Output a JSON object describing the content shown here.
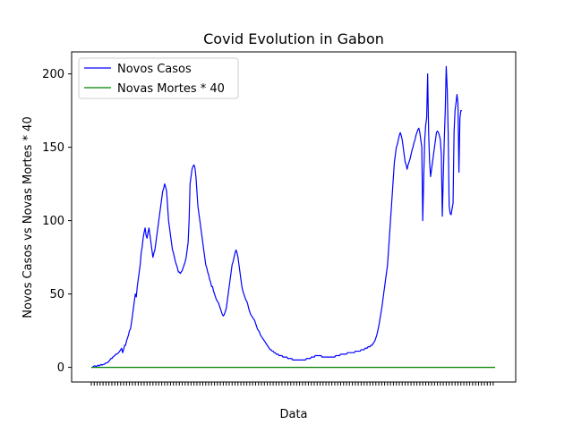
{
  "chart_data": {
    "type": "line",
    "title": "Covid Evolution in Gabon",
    "xlabel": "Data",
    "ylabel": "Novos Casos vs Novas Mortes * 40",
    "ylim": [
      -10,
      215
    ],
    "yticks": [
      0,
      50,
      100,
      150,
      200
    ],
    "x_tick_labels_note": "dense overlapping date labels (illegible)",
    "grid": false,
    "legend": {
      "placement": "top-left",
      "entries": [
        "Novos Casos",
        "Novas Mortes * 40"
      ]
    },
    "series": [
      {
        "name": "Novos Casos",
        "color": "#0000ff",
        "values": [
          0,
          0,
          0.5,
          1,
          1,
          0.5,
          1,
          1.5,
          1,
          1.5,
          2,
          1.5,
          2,
          2,
          2.5,
          3,
          3,
          3.5,
          4,
          5,
          6,
          6,
          7,
          7.5,
          8,
          9,
          9,
          9.5,
          10,
          11,
          12,
          13,
          10,
          12,
          15,
          15,
          18,
          20,
          22,
          25,
          26,
          30,
          35,
          40,
          45,
          50,
          48,
          55,
          60,
          65,
          70,
          78,
          82,
          88,
          92,
          95,
          90,
          88,
          92,
          95,
          90,
          85,
          80,
          75,
          78,
          80,
          85,
          90,
          95,
          100,
          105,
          110,
          115,
          120,
          122,
          125,
          123,
          120,
          110,
          100,
          95,
          90,
          85,
          80,
          78,
          75,
          72,
          70,
          68,
          65,
          65,
          64,
          65,
          66,
          68,
          70,
          72,
          75,
          80,
          85,
          100,
          125,
          130,
          135,
          137,
          138,
          136,
          130,
          120,
          110,
          105,
          100,
          95,
          90,
          85,
          80,
          75,
          70,
          68,
          65,
          63,
          60,
          58,
          55,
          55,
          52,
          50,
          48,
          46,
          45,
          44,
          42,
          40,
          38,
          36,
          35,
          36,
          38,
          40,
          45,
          50,
          55,
          60,
          65,
          70,
          72,
          75,
          78,
          80,
          78,
          75,
          70,
          65,
          60,
          55,
          52,
          50,
          48,
          46,
          45,
          43,
          40,
          38,
          36,
          35,
          34,
          33,
          32,
          30,
          28,
          26,
          25,
          24,
          22,
          21,
          20,
          19,
          18,
          17,
          16,
          15,
          14,
          13,
          12,
          12,
          11,
          11,
          10,
          10,
          9,
          9,
          9,
          8,
          8,
          8,
          8,
          7,
          7,
          7,
          7,
          7,
          6,
          6,
          6,
          6,
          6,
          5,
          5,
          5,
          5,
          5,
          5,
          5,
          5,
          5,
          5,
          5,
          5,
          5,
          5,
          6,
          6,
          6,
          6,
          6,
          7,
          7,
          7,
          7,
          8,
          8,
          8,
          8,
          8,
          8,
          8,
          7,
          7,
          7,
          7,
          7,
          7,
          7,
          7,
          7,
          7,
          7,
          7,
          7,
          7,
          8,
          8,
          8,
          8,
          8,
          9,
          9,
          9,
          9,
          9,
          9,
          9,
          10,
          10,
          10,
          10,
          10,
          10,
          10,
          10,
          11,
          11,
          11,
          11,
          11,
          11,
          12,
          12,
          12,
          12,
          13,
          13,
          13,
          14,
          14,
          14,
          15,
          15,
          16,
          17,
          18,
          20,
          22,
          25,
          28,
          32,
          36,
          40,
          45,
          50,
          55,
          60,
          65,
          70,
          80,
          90,
          100,
          110,
          120,
          130,
          140,
          145,
          150,
          152,
          155,
          158,
          160,
          158,
          155,
          150,
          145,
          140,
          138,
          135,
          138,
          140,
          142,
          145,
          148,
          150,
          153,
          155,
          158,
          160,
          162,
          163,
          160,
          155,
          150,
          100,
          130,
          155,
          165,
          170,
          200,
          160,
          140,
          130,
          135,
          140,
          145,
          150,
          155,
          160,
          161,
          160,
          158,
          155,
          145,
          103,
          130,
          155,
          175,
          205,
          190,
          160,
          110,
          105,
          104,
          108,
          112,
          160,
          175,
          180,
          186,
          180,
          133,
          170,
          175,
          175
        ]
      },
      {
        "name": "Novas Mortes * 40",
        "color": "#008000",
        "values": [
          0,
          0,
          0,
          0,
          0,
          0,
          0,
          0,
          0,
          0,
          0,
          0,
          0,
          0,
          0,
          0,
          0,
          0,
          0,
          0,
          0,
          0,
          0,
          0,
          0,
          0,
          0,
          0,
          0,
          0,
          0,
          0,
          0,
          0,
          0,
          0,
          0,
          0,
          0,
          0,
          0,
          0,
          0,
          0,
          0,
          0,
          0,
          0,
          0,
          0,
          0,
          0,
          0,
          0,
          0,
          0,
          0,
          0,
          0,
          0,
          0,
          0,
          0,
          0,
          0,
          0,
          0,
          0,
          0,
          0,
          0,
          0,
          0,
          0,
          0,
          0,
          0,
          0,
          0,
          0,
          0,
          0,
          0,
          0,
          0,
          0,
          0,
          0,
          0,
          0,
          0,
          0,
          0,
          0,
          0,
          0,
          0,
          0,
          0,
          0,
          0,
          0,
          0,
          0,
          0,
          0,
          0,
          0,
          0,
          0,
          0,
          0,
          0,
          0,
          0,
          0,
          0,
          0,
          0,
          0,
          0,
          0,
          0,
          0,
          0,
          0,
          0,
          0,
          0,
          0,
          0,
          0,
          0,
          0,
          0,
          0,
          0,
          0,
          0,
          0,
          0,
          0,
          0,
          0,
          0,
          0,
          0,
          0,
          0,
          0,
          0,
          0,
          0,
          0,
          0,
          0,
          0,
          0,
          0,
          0,
          0,
          0,
          0,
          0,
          0,
          0,
          0,
          0,
          0,
          0,
          0,
          0,
          0,
          0,
          0,
          0,
          0,
          0,
          0,
          0,
          0,
          0,
          0,
          0,
          0,
          0,
          0,
          0,
          0,
          0,
          0,
          0,
          0,
          0,
          0,
          0,
          0,
          0,
          0,
          0,
          0,
          0,
          0,
          0,
          0,
          0,
          0,
          0,
          0,
          0,
          0,
          0,
          0,
          0,
          0,
          0,
          0,
          0,
          0,
          0,
          0,
          0,
          0,
          0,
          0,
          0,
          0,
          0,
          0,
          0,
          0,
          0,
          0,
          0,
          0,
          0,
          0,
          0,
          0,
          0,
          0,
          0,
          0,
          0,
          0,
          0,
          0,
          0,
          0,
          0,
          0,
          0,
          0,
          0,
          0,
          0,
          0,
          0,
          0,
          0,
          0,
          0,
          0,
          0,
          0,
          0,
          0,
          0,
          0,
          0,
          0,
          0,
          0,
          0,
          0,
          0,
          0,
          0,
          0,
          0,
          0,
          0,
          0,
          0,
          0,
          0,
          0,
          0,
          0,
          0,
          0,
          0,
          0,
          0,
          0,
          0,
          0,
          0,
          0,
          0,
          0,
          0,
          0,
          0,
          0,
          0,
          0,
          0,
          0,
          0,
          0,
          0,
          0,
          0,
          0,
          0,
          0,
          0,
          0,
          0,
          0,
          0,
          0,
          0,
          0,
          0,
          0,
          0,
          0,
          0,
          0,
          0,
          0,
          0,
          0,
          0,
          0,
          0,
          0,
          0,
          0,
          0,
          0,
          0,
          0,
          0,
          0,
          0,
          0,
          0,
          0,
          0,
          0,
          0,
          0,
          0,
          0,
          0,
          0,
          0,
          0,
          0,
          0,
          0,
          0,
          0,
          0,
          0,
          0,
          0,
          0,
          0,
          0,
          0,
          0,
          0,
          0,
          0,
          0,
          0,
          0,
          0,
          0,
          0,
          0,
          0,
          0,
          0,
          0,
          0,
          0,
          0,
          0,
          0,
          0,
          0,
          0,
          0,
          0,
          0,
          0,
          0,
          0,
          0,
          0,
          0,
          0,
          0,
          0,
          0,
          0,
          0,
          0,
          0
        ]
      }
    ]
  }
}
